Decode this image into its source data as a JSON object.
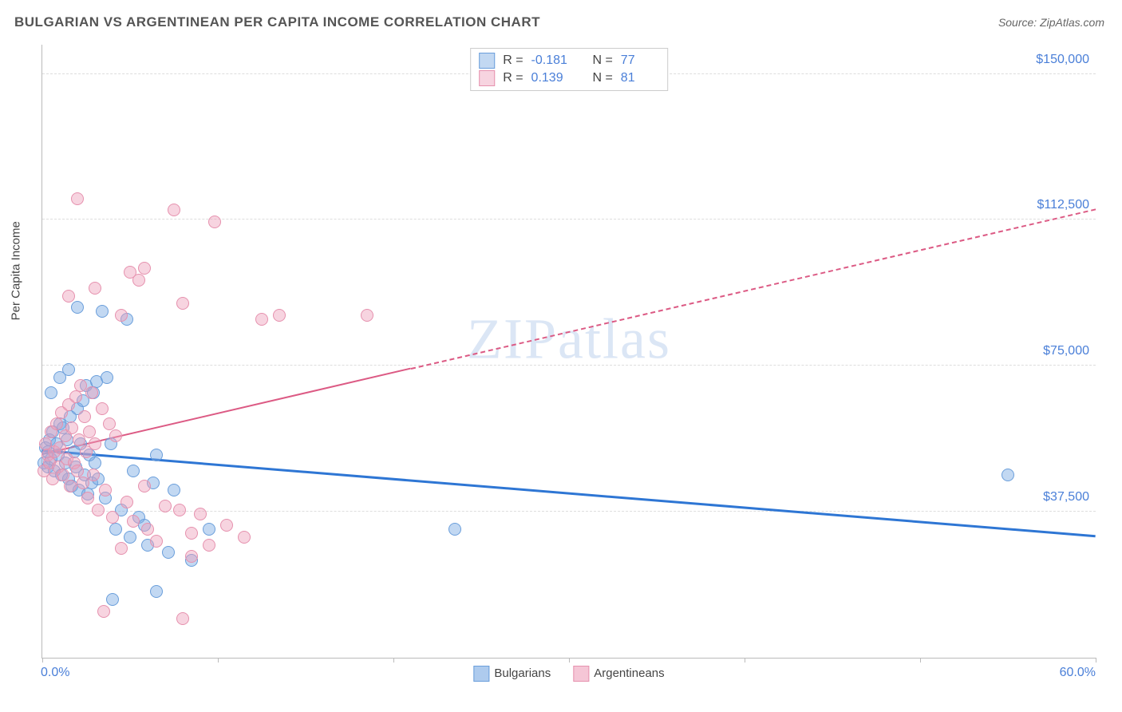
{
  "title": "BULGARIAN VS ARGENTINEAN PER CAPITA INCOME CORRELATION CHART",
  "source": "Source: ZipAtlas.com",
  "ylabel": "Per Capita Income",
  "watermark": "ZIPatlas",
  "chart": {
    "type": "scatter",
    "xlim": [
      0,
      60
    ],
    "ylim": [
      0,
      157500
    ],
    "xtick_label_start": "0.0%",
    "xtick_label_end": "60.0%",
    "xtick_positions_pct": [
      0,
      10,
      20,
      30,
      40,
      50,
      60
    ],
    "ytick_values": [
      37500,
      75000,
      112500,
      150000
    ],
    "ytick_labels": [
      "$37,500",
      "$75,000",
      "$112,500",
      "$150,000"
    ],
    "grid_color": "#dddddd",
    "axis_color": "#bbbbbb",
    "background_color": "#ffffff",
    "label_color": "#4a7fd8",
    "point_radius": 8,
    "series": [
      {
        "name": "Bulgarians",
        "fill": "rgba(120,168,227,0.45)",
        "stroke": "#6a9edb",
        "trend_color": "#2e76d4",
        "trend_width": 3,
        "R": "-0.181",
        "N": "77",
        "trend": {
          "x1": 0,
          "y1": 53000,
          "x2": 60,
          "y2": 31000,
          "solid_until_x": 60
        },
        "points": [
          [
            0.1,
            50000
          ],
          [
            0.2,
            54000
          ],
          [
            0.3,
            49000
          ],
          [
            0.4,
            56000
          ],
          [
            0.3,
            53000
          ],
          [
            0.5,
            51000
          ],
          [
            0.6,
            58000
          ],
          [
            0.7,
            48000
          ],
          [
            0.8,
            55000
          ],
          [
            0.9,
            52000
          ],
          [
            1.0,
            60000
          ],
          [
            1.1,
            47000
          ],
          [
            1.2,
            59000
          ],
          [
            1.3,
            50000
          ],
          [
            1.4,
            56000
          ],
          [
            1.5,
            46000
          ],
          [
            1.6,
            62000
          ],
          [
            1.7,
            44000
          ],
          [
            1.8,
            53000
          ],
          [
            1.9,
            49000
          ],
          [
            2.0,
            64000
          ],
          [
            2.1,
            43000
          ],
          [
            2.2,
            55000
          ],
          [
            2.3,
            66000
          ],
          [
            2.4,
            47000
          ],
          [
            2.5,
            70000
          ],
          [
            2.6,
            42000
          ],
          [
            2.7,
            52000
          ],
          [
            2.8,
            45000
          ],
          [
            2.9,
            68000
          ],
          [
            3.0,
            50000
          ],
          [
            3.1,
            71000
          ],
          [
            3.2,
            46000
          ],
          [
            3.4,
            89000
          ],
          [
            3.6,
            41000
          ],
          [
            3.7,
            72000
          ],
          [
            3.9,
            55000
          ],
          [
            4.2,
            33000
          ],
          [
            4.5,
            38000
          ],
          [
            4.8,
            87000
          ],
          [
            5.0,
            31000
          ],
          [
            5.2,
            48000
          ],
          [
            5.5,
            36000
          ],
          [
            5.8,
            34000
          ],
          [
            6.0,
            29000
          ],
          [
            6.3,
            45000
          ],
          [
            6.5,
            52000
          ],
          [
            7.2,
            27000
          ],
          [
            7.5,
            43000
          ],
          [
            8.5,
            25000
          ],
          [
            9.5,
            33000
          ],
          [
            2.0,
            90000
          ],
          [
            0.5,
            68000
          ],
          [
            1.0,
            72000
          ],
          [
            1.5,
            74000
          ],
          [
            23.5,
            33000
          ],
          [
            55.0,
            47000
          ],
          [
            4.0,
            15000
          ],
          [
            6.5,
            17000
          ]
        ]
      },
      {
        "name": "Argentineans",
        "fill": "rgba(238,160,186,0.45)",
        "stroke": "#e691ae",
        "trend_color": "#dc5a84",
        "trend_width": 2,
        "R": "0.139",
        "N": "81",
        "trend": {
          "x1": 0,
          "y1": 52000,
          "x2": 60,
          "y2": 115000,
          "solid_until_x": 21
        },
        "points": [
          [
            0.1,
            48000
          ],
          [
            0.2,
            55000
          ],
          [
            0.3,
            52000
          ],
          [
            0.4,
            50000
          ],
          [
            0.5,
            58000
          ],
          [
            0.6,
            46000
          ],
          [
            0.7,
            53000
          ],
          [
            0.8,
            60000
          ],
          [
            0.9,
            49000
          ],
          [
            1.0,
            54000
          ],
          [
            1.1,
            63000
          ],
          [
            1.2,
            47000
          ],
          [
            1.3,
            57000
          ],
          [
            1.4,
            51000
          ],
          [
            1.5,
            65000
          ],
          [
            1.6,
            44000
          ],
          [
            1.7,
            59000
          ],
          [
            1.8,
            50000
          ],
          [
            1.9,
            67000
          ],
          [
            2.0,
            48000
          ],
          [
            2.1,
            56000
          ],
          [
            2.2,
            70000
          ],
          [
            2.3,
            45000
          ],
          [
            2.4,
            62000
          ],
          [
            2.5,
            53000
          ],
          [
            2.6,
            41000
          ],
          [
            2.7,
            58000
          ],
          [
            2.8,
            68000
          ],
          [
            2.9,
            47000
          ],
          [
            3.0,
            55000
          ],
          [
            3.2,
            38000
          ],
          [
            3.4,
            64000
          ],
          [
            3.6,
            43000
          ],
          [
            3.8,
            60000
          ],
          [
            4.0,
            36000
          ],
          [
            4.2,
            57000
          ],
          [
            4.5,
            88000
          ],
          [
            4.8,
            40000
          ],
          [
            5.0,
            99000
          ],
          [
            5.2,
            35000
          ],
          [
            5.5,
            97000
          ],
          [
            5.8,
            44000
          ],
          [
            6.0,
            33000
          ],
          [
            6.5,
            30000
          ],
          [
            7.0,
            39000
          ],
          [
            7.5,
            115000
          ],
          [
            8.0,
            91000
          ],
          [
            8.5,
            32000
          ],
          [
            9.0,
            37000
          ],
          [
            9.5,
            29000
          ],
          [
            9.8,
            112000
          ],
          [
            10.5,
            34000
          ],
          [
            11.5,
            31000
          ],
          [
            1.5,
            93000
          ],
          [
            3.0,
            95000
          ],
          [
            4.5,
            28000
          ],
          [
            7.8,
            38000
          ],
          [
            8.5,
            26000
          ],
          [
            12.5,
            87000
          ],
          [
            13.5,
            88000
          ],
          [
            18.5,
            88000
          ],
          [
            8.0,
            10000
          ],
          [
            3.5,
            12000
          ],
          [
            5.8,
            100000
          ],
          [
            2.0,
            118000
          ]
        ]
      }
    ]
  },
  "legend_bottom": {
    "items": [
      {
        "label": "Bulgarians",
        "fill": "rgba(120,168,227,0.6)",
        "stroke": "#6a9edb"
      },
      {
        "label": "Argentineans",
        "fill": "rgba(238,160,186,0.6)",
        "stroke": "#e691ae"
      }
    ]
  }
}
